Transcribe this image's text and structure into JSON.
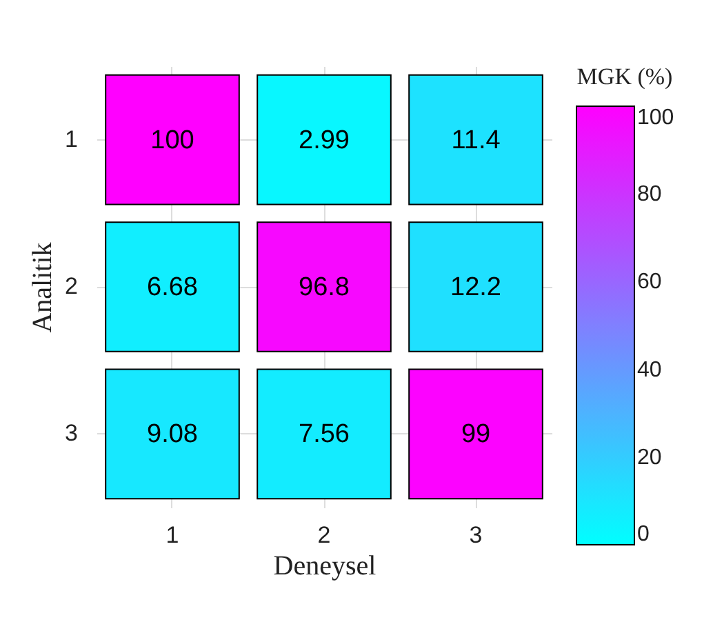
{
  "chart_data": {
    "type": "heatmap",
    "xlabel": "Deneysel",
    "ylabel": "Analitik",
    "clabel": "MGK (%)",
    "categories": [
      "1",
      "2",
      "3"
    ],
    "y_categories": [
      "1",
      "2",
      "3"
    ],
    "cells": [
      [
        100,
        2.99,
        11.4
      ],
      [
        6.68,
        96.8,
        12.2
      ],
      [
        9.08,
        7.56,
        99
      ]
    ],
    "clim": [
      0,
      100
    ],
    "cticks": [
      0,
      20,
      40,
      60,
      80,
      100
    ],
    "colors": [
      "#00ffff",
      "#ff00ff"
    ],
    "data_labels": true,
    "grid": true
  }
}
